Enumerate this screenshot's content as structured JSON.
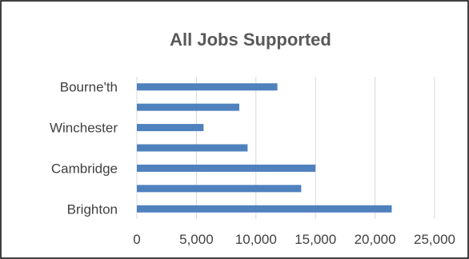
{
  "chart_data": {
    "type": "bar",
    "orientation": "horizontal",
    "title": "All Jobs Supported",
    "categories": [
      "Brighton",
      "",
      "Cambridge",
      "",
      "Winchester",
      "",
      "Bourne'th"
    ],
    "values": [
      21400,
      13800,
      15000,
      9300,
      5600,
      8600,
      11800
    ],
    "xlim": [
      0,
      25000
    ],
    "xticks": [
      0,
      5000,
      10000,
      15000,
      20000,
      25000
    ],
    "xtick_labels": [
      "0",
      "5,000",
      "10,000",
      "15,000",
      "20,000",
      "25,000"
    ],
    "grid": true,
    "legend": "none",
    "bar_color": "#4f81bd"
  }
}
